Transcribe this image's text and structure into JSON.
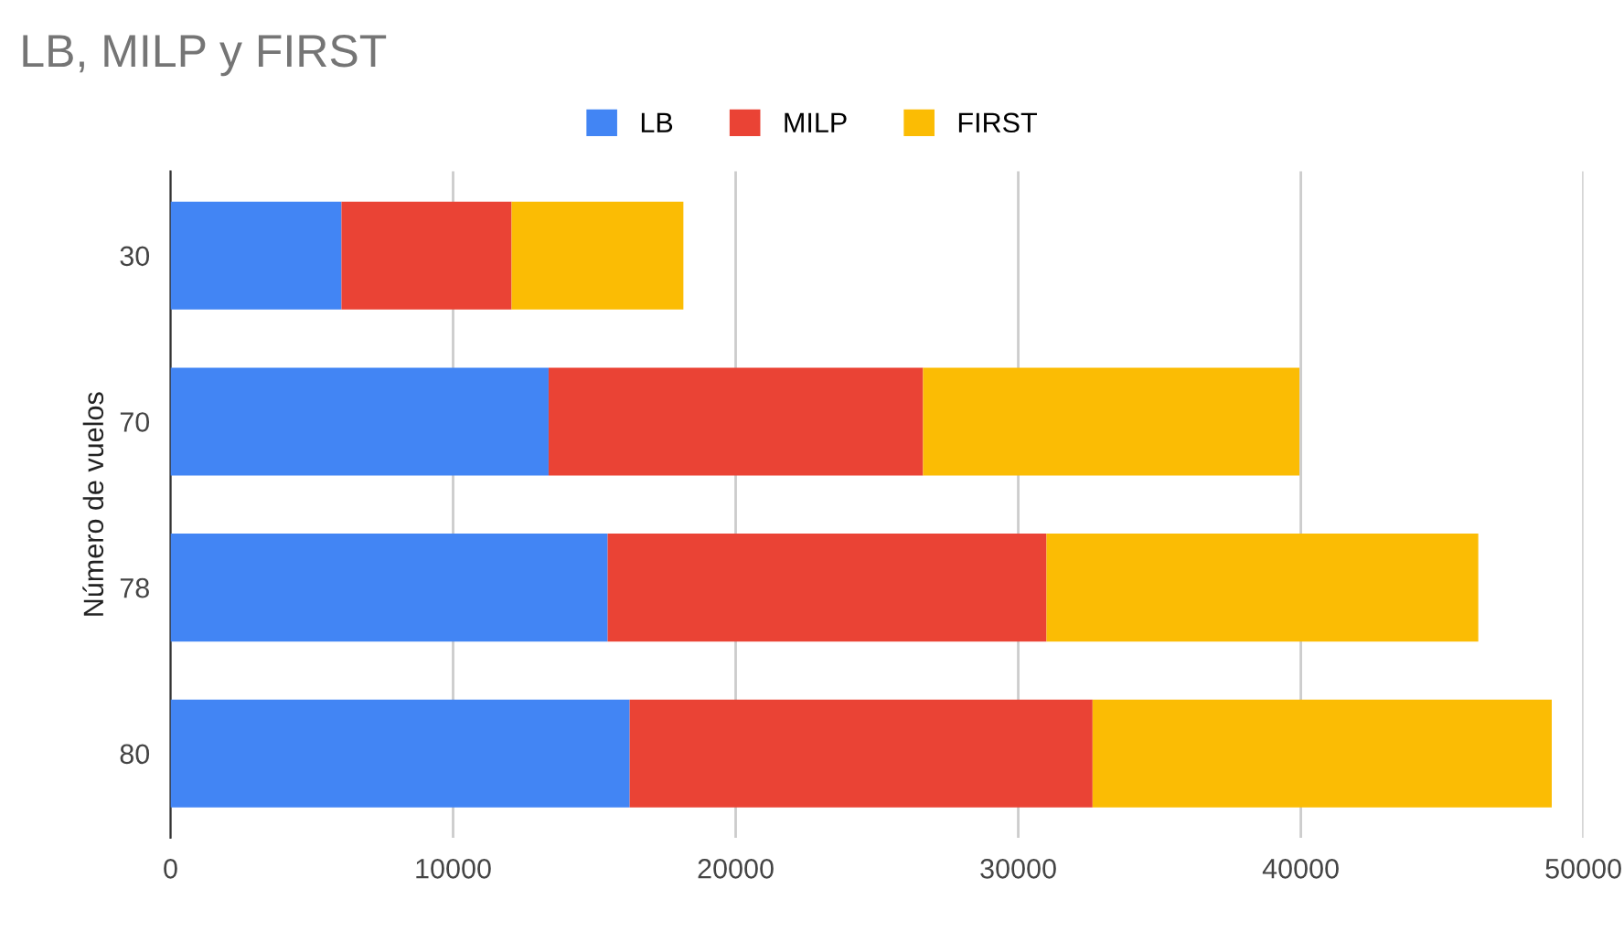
{
  "chart_data": {
    "type": "bar",
    "orientation": "horizontal",
    "stacked": true,
    "title": "LB, MILP y FIRST",
    "ylabel": "Número de vuelos",
    "categories": [
      "30",
      "70",
      "78",
      "80"
    ],
    "series": [
      {
        "name": "LB",
        "color": "#4285f4",
        "values": [
          6050,
          13380,
          15470,
          16250
        ]
      },
      {
        "name": "MILP",
        "color": "#ea4335",
        "values": [
          6020,
          13250,
          15530,
          16380
        ]
      },
      {
        "name": "FIRST",
        "color": "#fbbc04",
        "values": [
          6080,
          13320,
          15280,
          16250
        ]
      }
    ],
    "xlim": [
      0,
      50000
    ],
    "xticks": [
      0,
      10000,
      20000,
      30000,
      40000,
      50000
    ],
    "grid": "x",
    "legend": "top"
  }
}
